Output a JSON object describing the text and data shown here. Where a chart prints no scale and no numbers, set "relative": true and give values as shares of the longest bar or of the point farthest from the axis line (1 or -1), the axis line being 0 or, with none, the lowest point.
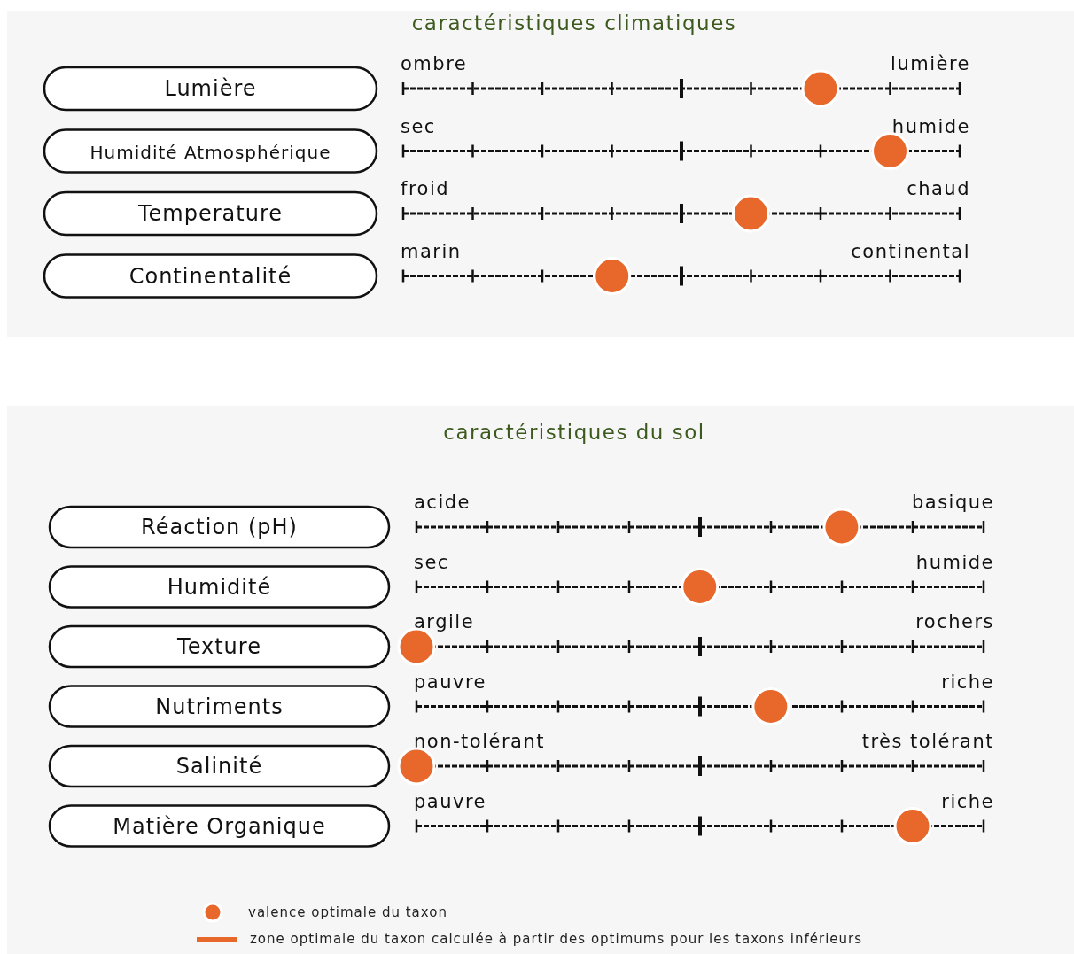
{
  "chart_data": [
    {
      "type": "scatter",
      "orientation": "horizontal",
      "relative": true,
      "grid": true,
      "title": "caractéristiques climatiques",
      "categories": [
        "Lumière",
        "Humidité Atmosphérique",
        "Temperature",
        "Continentalité"
      ],
      "series": [
        {
          "color": "#e8672a",
          "values": [
            0.857,
            1,
            0.714,
            0.429
          ]
        }
      ],
      "marker": "circle",
      "legend": false,
      "annotations": [
        "ombre",
        "lumière",
        "sec",
        "humide",
        "froid",
        "chaud",
        "marin",
        "continental"
      ]
    },
    {
      "type": "scatter",
      "orientation": "horizontal",
      "relative": true,
      "grid": true,
      "title": "caractéristiques du sol",
      "categories": [
        "Réaction (pH)",
        "Humidité",
        "Texture",
        "Nutriments",
        "Salinité",
        "Matière Organique"
      ],
      "series": [
        {
          "name": "valence optimale du taxon",
          "color": "#e8672a",
          "values": [
            0.857,
            0.571,
            0,
            0.714,
            0,
            1
          ]
        }
      ],
      "marker": "circle",
      "legend": "bottom",
      "annotations": [
        "acide",
        "basique",
        "sec",
        "humide",
        "argile",
        "rochers",
        "pauvre",
        "riche",
        "non-tolérant",
        "très tolérant",
        "pauvre",
        "riche",
        "zone optimale du taxon calculée à partir des optimums pour les taxons inférieurs"
      ]
    }
  ]
}
